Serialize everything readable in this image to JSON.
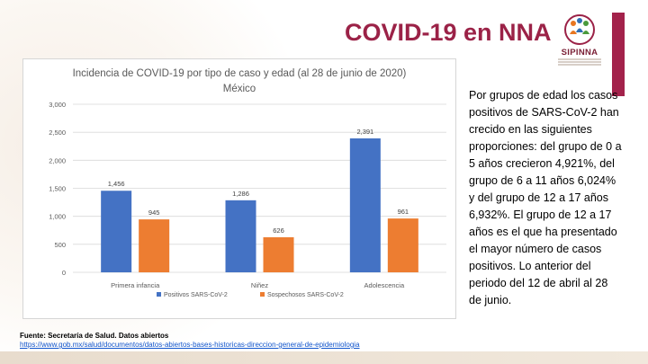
{
  "slide": {
    "title": "COVID-19 en NNA",
    "logo_text": "SIPINNA",
    "side_text": "Por grupos de edad los casos positivos de SARS-CoV-2 han crecido en las siguientes proporciones: del grupo de 0 a 5 años crecieron 4,921%, del grupo de 6 a 11 años 6,024% y del grupo de 12 a 17 años 6,932%. El grupo de 12 a 17 años es el que ha presentado el mayor número de casos positivos. Lo anterior del periodo del 12 de abril al 28 de junio.",
    "source_label": "Fuente: Secretaría de Salud. Datos abiertos",
    "source_link": "https://www.gob.mx/salud/documentos/datos-abiertos-bases-historicas-direccion-general-de-epidemiologia",
    "colors": {
      "title": "#9b2247",
      "accent_bar": "#a3224b"
    }
  },
  "chart_data": {
    "type": "bar",
    "title": "Incidencia de COVID-19 por tipo de caso y edad (al 28 de junio de 2020)",
    "subtitle": "México",
    "categories": [
      "Primera infancia",
      "Niñez",
      "Adolescencia"
    ],
    "series": [
      {
        "name": "Positivos SARS-CoV-2",
        "values": [
          1456,
          1286,
          2391
        ],
        "labels": [
          "1,456",
          "1,286",
          "2,391"
        ],
        "color": "#4472c4"
      },
      {
        "name": "Sospechosos SARS-CoV-2",
        "values": [
          945,
          626,
          961
        ],
        "labels": [
          "945",
          "626",
          "961"
        ],
        "color": "#ed7d31"
      }
    ],
    "yticks": [
      0,
      500,
      1000,
      1500,
      2000,
      2500,
      3000
    ],
    "ytick_labels": [
      "0",
      "500",
      "1,000",
      "1,500",
      "2,000",
      "2,500",
      "3,000"
    ],
    "ylim": [
      0,
      3000
    ],
    "grid": true,
    "legend_position": "bottom",
    "axis_color": "#d9d9d9",
    "text_color": "#595959"
  }
}
